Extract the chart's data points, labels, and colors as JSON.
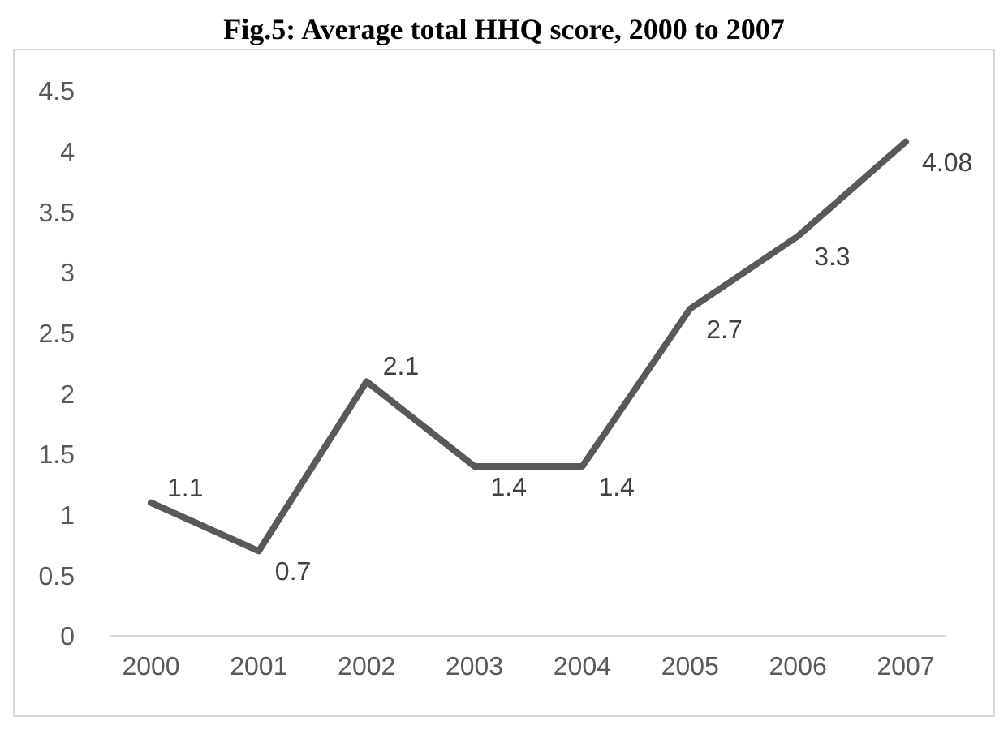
{
  "chart_data": {
    "type": "line",
    "title": "Fig.5: Average total HHQ score, 2000 to 2007",
    "categories": [
      "2000",
      "2001",
      "2002",
      "2003",
      "2004",
      "2005",
      "2006",
      "2007"
    ],
    "series": [
      {
        "color": "#595959",
        "values": [
          1.1,
          0.7,
          2.1,
          1.4,
          1.4,
          2.7,
          3.3,
          4.08
        ]
      }
    ],
    "ylim": [
      0,
      4.5
    ],
    "yticks": [
      0,
      0.5,
      1,
      1.5,
      2,
      2.5,
      3,
      3.5,
      4,
      4.5
    ],
    "grid": false,
    "data_labels": true
  }
}
